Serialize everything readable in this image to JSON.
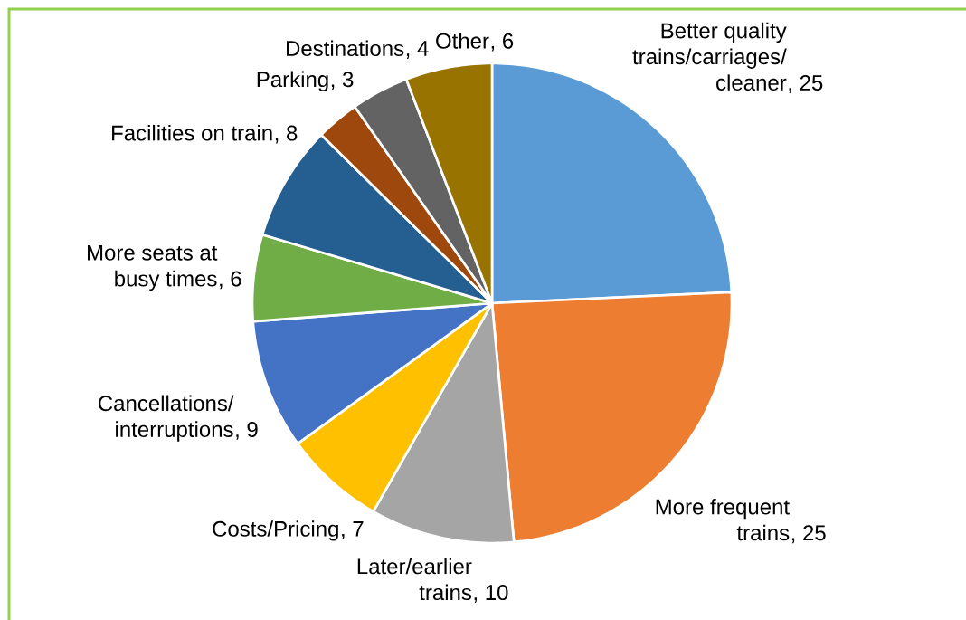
{
  "chart_data": {
    "type": "pie",
    "categories": [
      "Better quality trains/carriages/cleaner",
      "More frequent trains",
      "Later/earlier trains",
      "Costs/Pricing",
      "Cancellations/interruptions",
      "More seats at busy times",
      "Facilities on train",
      "Parking",
      "Destinations",
      "Other"
    ],
    "values": [
      25,
      25,
      10,
      7,
      9,
      6,
      8,
      3,
      4,
      6
    ],
    "colors": [
      "#5B9BD5",
      "#ED7D31",
      "#A5A5A5",
      "#FFC000",
      "#4472C4",
      "#70AD47",
      "#255E91",
      "#9E480E",
      "#636363",
      "#997300"
    ],
    "value_labels": [
      ", 25",
      ", 25",
      ", 10",
      ", 7",
      ", 9",
      ", 6",
      ", 8",
      ", 3",
      ", 4",
      ", 6"
    ]
  }
}
